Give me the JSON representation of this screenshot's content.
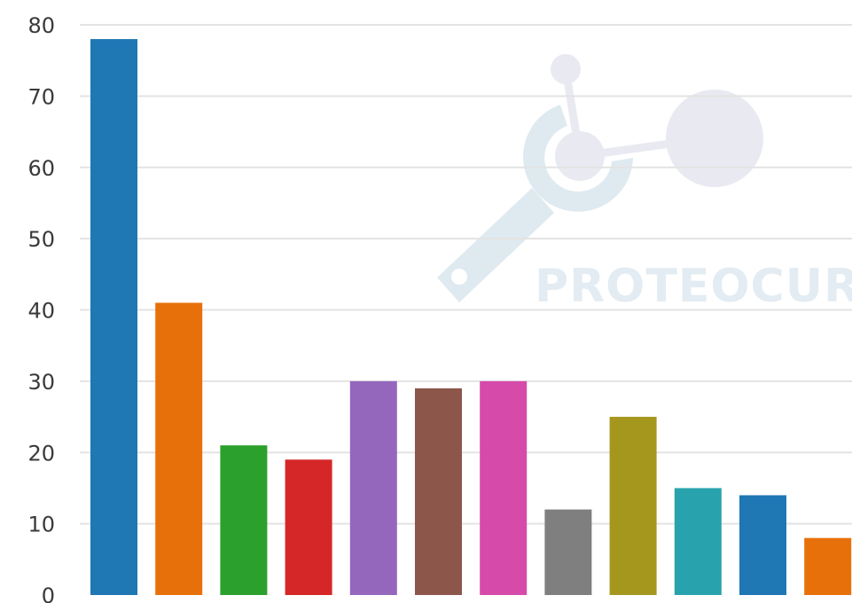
{
  "chart_data": {
    "type": "bar",
    "values": [
      78,
      41,
      21,
      19,
      30,
      29,
      30,
      12,
      25,
      15,
      14,
      8
    ],
    "colors": [
      "#1f77b4",
      "#e8700a",
      "#2ca02c",
      "#d62728",
      "#9467bd",
      "#8c564b",
      "#d64aa9",
      "#7f7f7f",
      "#a5971e",
      "#28a3ad",
      "#1f77b4",
      "#e8700a"
    ],
    "ylim": [
      0,
      80
    ],
    "yticks": [
      "0",
      "10",
      "20",
      "30",
      "40",
      "50",
      "60",
      "70",
      "80"
    ],
    "grid": true
  },
  "watermark": {
    "logo_text": "PROTEOCURE",
    "colors": {
      "wrench": "#dfeaf0",
      "molecule": "#e9eaf1",
      "text_light": "#e3ecf2",
      "text_dark": "#e8e9f1"
    }
  }
}
